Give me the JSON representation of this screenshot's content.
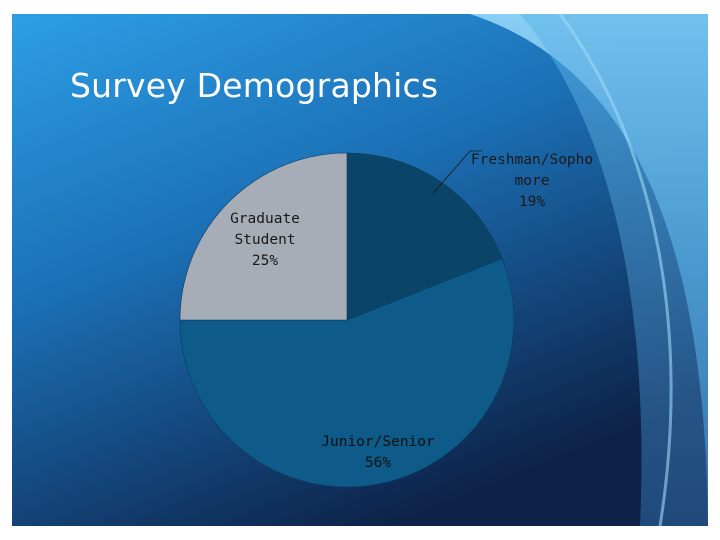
{
  "slide": {
    "title": "Survey Demographics"
  },
  "chart_data": {
    "type": "pie",
    "title": "",
    "legend": "none",
    "slices": [
      {
        "label": "Freshman/Sophomore",
        "label_lines": [
          "Freshman/Sopho",
          "more"
        ],
        "value": 19,
        "display": "19%",
        "color": "#0a4468",
        "text_color": "#1a1a1a"
      },
      {
        "label": "Junior/Senior",
        "label_lines": [
          "Junior/Senior"
        ],
        "value": 56,
        "display": "56%",
        "color": "#0e5a88",
        "text_color": "#111111"
      },
      {
        "label": "Graduate Student",
        "label_lines": [
          "Graduate",
          "Student"
        ],
        "value": 25,
        "display": "25%",
        "color": "#a6adb6",
        "text_color": "#1a1a1a"
      }
    ]
  },
  "colors": {
    "background_light": "#8ed0f4",
    "background_mid": "#2f8ed1",
    "background_dark": "#0e2a52"
  }
}
